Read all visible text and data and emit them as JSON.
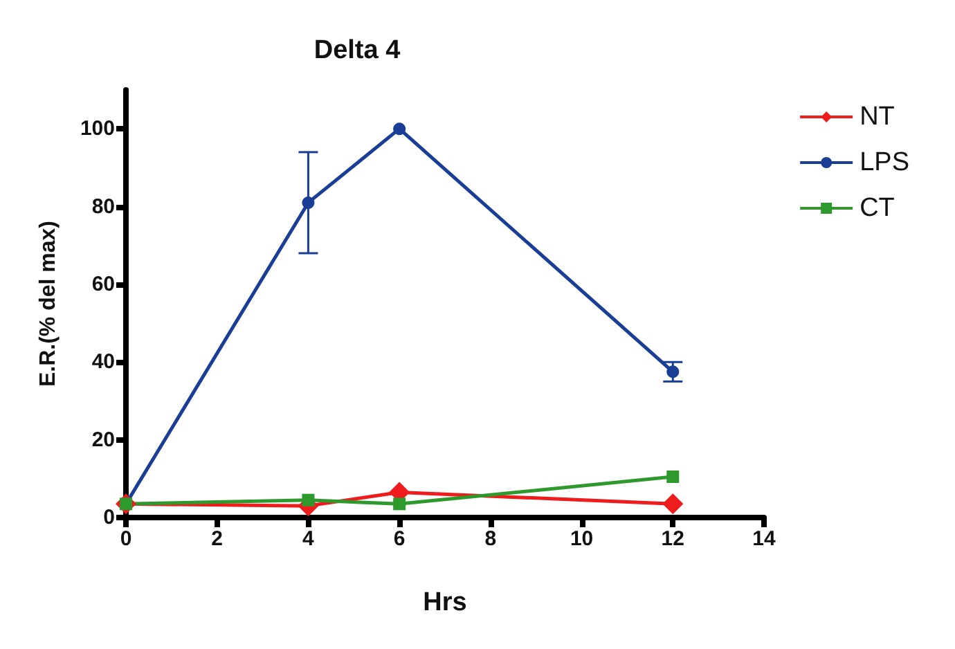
{
  "chart_data": {
    "type": "line",
    "title": "Delta 4",
    "xlabel": "Hrs",
    "ylabel": "E.R.(% del max)",
    "x": [
      0,
      4,
      6,
      12
    ],
    "series": [
      {
        "name": "NT",
        "color": "#ee1c1c",
        "marker": "diamond",
        "values": [
          3.5,
          3,
          6.5,
          3.5
        ]
      },
      {
        "name": "LPS",
        "color": "#1a3e96",
        "marker": "circle",
        "values": [
          3.5,
          81,
          100,
          37.5
        ],
        "errors": [
          null,
          [
            68,
            94
          ],
          null,
          [
            35,
            40
          ]
        ]
      },
      {
        "name": "CT",
        "color": "#2e9a2e",
        "marker": "square",
        "values": [
          3.5,
          4.5,
          3.5,
          10.5
        ]
      }
    ],
    "xlim": [
      0,
      14
    ],
    "xticks": [
      0,
      2,
      4,
      6,
      8,
      10,
      12,
      14
    ],
    "ylim": [
      0,
      110
    ],
    "yticks": [
      0,
      20,
      40,
      60,
      80,
      100
    ],
    "grid": false,
    "legend": "top right",
    "line_style": "solid"
  }
}
